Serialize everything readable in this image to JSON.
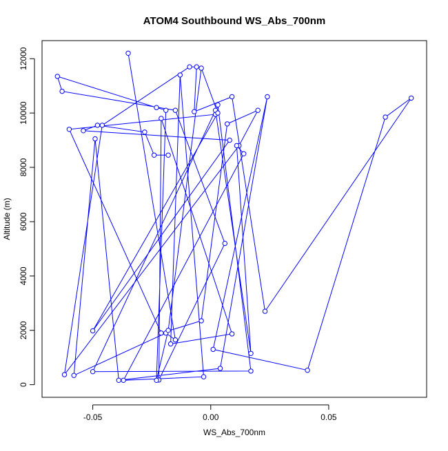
{
  "chart_data": {
    "type": "line",
    "title": "ATOM4 Southbound WS_Abs_700nm",
    "xlabel": "WS_Abs_700nm",
    "ylabel": "Altitude (m)",
    "xlim": [
      -0.0715,
      0.0915
    ],
    "ylim": [
      -465,
      12665
    ],
    "x_ticks": [
      -0.05,
      0.0,
      0.05
    ],
    "x_tick_labels": [
      "-0.05",
      "0.00",
      "0.05"
    ],
    "y_ticks": [
      0,
      2000,
      4000,
      6000,
      8000,
      10000,
      12000
    ],
    "y_tick_labels": [
      "0",
      "2000",
      "4000",
      "6000",
      "8000",
      "10000",
      "12000"
    ],
    "grid": false,
    "marker": "open-circle",
    "series": [
      {
        "color": "#0000ff",
        "x": [
          -0.035,
          -0.015,
          -0.019,
          -0.058,
          -0.049,
          -0.039,
          0.004,
          0.024,
          0.001,
          0.041,
          0.074,
          0.085,
          0.023,
          0.009,
          -0.007,
          -0.006,
          -0.009,
          -0.046,
          -0.062,
          0.012,
          0.02,
          0.007,
          -0.004,
          -0.021,
          -0.06,
          0.002,
          0.003,
          0.017,
          -0.05,
          0.002,
          0.017,
          0.011,
          0.014,
          -0.037,
          -0.003,
          -0.013,
          -0.017,
          0.009,
          -0.021,
          -0.022,
          0.006,
          -0.015,
          -0.063,
          -0.065,
          -0.023,
          -0.019,
          -0.023,
          -0.018,
          -0.004,
          0.003,
          -0.05,
          0.008,
          -0.054,
          -0.048,
          -0.028,
          -0.024,
          -0.018
        ],
        "y": [
          12200,
          1650,
          1900,
          340,
          9050,
          160,
          600,
          10600,
          1300,
          530,
          9850,
          10550,
          2700,
          10600,
          10050,
          11700,
          11700,
          9550,
          370,
          8800,
          10100,
          9600,
          2350,
          1900,
          9400,
          9950,
          10300,
          500,
          480,
          10100,
          1150,
          8800,
          8500,
          160,
          290,
          11400,
          1500,
          1870,
          9800,
          170,
          5200,
          10100,
          10800,
          11350,
          10200,
          10100,
          160,
          2000,
          11650,
          10000,
          1980,
          9000,
          9350,
          9550,
          9300,
          8450,
          8450
        ]
      }
    ]
  }
}
